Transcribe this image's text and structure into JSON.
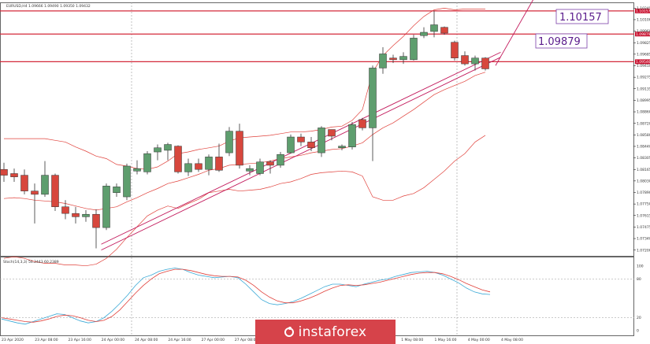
{
  "chart_data": {
    "type": "candlestick",
    "header": "EURUSD,H4  1.09666 1.09490 1.09350 1.09432",
    "price_ylim": [
      1.0721,
      1.1026
    ],
    "price_ticks": [
      "1.10245",
      "1.10100",
      "1.09960",
      "1.09825",
      "1.09685",
      "1.09410",
      "1.09275",
      "1.09135",
      "1.08995",
      "1.08860",
      "1.08720",
      "1.08580",
      "1.08440",
      "1.08305",
      "1.08165",
      "1.08030",
      "1.07890",
      "1.07750",
      "1.07615",
      "1.07475",
      "1.07340",
      "1.07200"
    ],
    "horizontal_levels": [
      {
        "price": 1.10157,
        "label": "1.10157"
      },
      {
        "price": 1.09879,
        "label": "1.09879"
      },
      {
        "price": 1.09546,
        "label": "1.09546"
      }
    ],
    "callouts": [
      "1.10157",
      "1.09879"
    ],
    "time_labels": [
      "23 Apr 2020",
      "23 Apr 08:00",
      "23 Apr 16:00",
      "24 Apr 00:00",
      "24 Apr 08:00",
      "24 Apr 16:00",
      "27 Apr 00:00",
      "27 Apr 08:00",
      "27 Apr 16:00",
      "28 Apr 00:00",
      "28 Apr 08:00",
      "28 Apr 16:00",
      "1 May 08:00",
      "1 May 16:00",
      "4 May 00:00",
      "4 May 08:00"
    ],
    "candles": [
      {
        "o": 1.0825,
        "h": 1.0833,
        "l": 1.081,
        "c": 1.0818
      },
      {
        "o": 1.082,
        "h": 1.0826,
        "l": 1.081,
        "c": 1.0816
      },
      {
        "o": 1.0818,
        "h": 1.0825,
        "l": 1.0795,
        "c": 1.0799
      },
      {
        "o": 1.0799,
        "h": 1.0808,
        "l": 1.076,
        "c": 1.0795
      },
      {
        "o": 1.0795,
        "h": 1.0835,
        "l": 1.0792,
        "c": 1.0818
      },
      {
        "o": 1.0818,
        "h": 1.082,
        "l": 1.0775,
        "c": 1.078
      },
      {
        "o": 1.078,
        "h": 1.0788,
        "l": 1.0765,
        "c": 1.0772
      },
      {
        "o": 1.0772,
        "h": 1.078,
        "l": 1.076,
        "c": 1.0768
      },
      {
        "o": 1.0768,
        "h": 1.0776,
        "l": 1.0762,
        "c": 1.0771
      },
      {
        "o": 1.0771,
        "h": 1.0777,
        "l": 1.073,
        "c": 1.0755
      },
      {
        "o": 1.0755,
        "h": 1.0808,
        "l": 1.0752,
        "c": 1.0805
      },
      {
        "o": 1.0797,
        "h": 1.0808,
        "l": 1.0792,
        "c": 1.0804
      },
      {
        "o": 1.0792,
        "h": 1.0832,
        "l": 1.0788,
        "c": 1.0829
      },
      {
        "o": 1.0823,
        "h": 1.0836,
        "l": 1.0819,
        "c": 1.0826
      },
      {
        "o": 1.0822,
        "h": 1.0847,
        "l": 1.0819,
        "c": 1.0844
      },
      {
        "o": 1.0846,
        "h": 1.0855,
        "l": 1.0836,
        "c": 1.0851
      },
      {
        "o": 1.0848,
        "h": 1.0857,
        "l": 1.0836,
        "c": 1.0855
      },
      {
        "o": 1.0853,
        "h": 1.0854,
        "l": 1.082,
        "c": 1.0822
      },
      {
        "o": 1.0822,
        "h": 1.0838,
        "l": 1.0817,
        "c": 1.0832
      },
      {
        "o": 1.0832,
        "h": 1.0838,
        "l": 1.0822,
        "c": 1.0825
      },
      {
        "o": 1.0825,
        "h": 1.0843,
        "l": 1.0818,
        "c": 1.084
      },
      {
        "o": 1.084,
        "h": 1.0856,
        "l": 1.0822,
        "c": 1.0824
      },
      {
        "o": 1.0845,
        "h": 1.0876,
        "l": 1.0841,
        "c": 1.0871
      },
      {
        "o": 1.0871,
        "h": 1.088,
        "l": 1.0826,
        "c": 1.083
      },
      {
        "o": 1.0823,
        "h": 1.083,
        "l": 1.0818,
        "c": 1.0826
      },
      {
        "o": 1.082,
        "h": 1.0838,
        "l": 1.0818,
        "c": 1.0834
      },
      {
        "o": 1.0834,
        "h": 1.0836,
        "l": 1.082,
        "c": 1.083
      },
      {
        "o": 1.083,
        "h": 1.0846,
        "l": 1.0827,
        "c": 1.0843
      },
      {
        "o": 1.0845,
        "h": 1.0867,
        "l": 1.0844,
        "c": 1.0864
      },
      {
        "o": 1.0864,
        "h": 1.0868,
        "l": 1.0853,
        "c": 1.0858
      },
      {
        "o": 1.0858,
        "h": 1.0864,
        "l": 1.0847,
        "c": 1.0851
      },
      {
        "o": 1.0845,
        "h": 1.0877,
        "l": 1.084,
        "c": 1.0875
      },
      {
        "o": 1.0873,
        "h": 1.0873,
        "l": 1.086,
        "c": 1.0865
      },
      {
        "o": 1.0851,
        "h": 1.0855,
        "l": 1.0848,
        "c": 1.0853
      },
      {
        "o": 1.0852,
        "h": 1.0882,
        "l": 1.0849,
        "c": 1.0879
      },
      {
        "o": 1.0885,
        "h": 1.0887,
        "l": 1.0872,
        "c": 1.0875
      },
      {
        "o": 1.0875,
        "h": 1.095,
        "l": 1.0835,
        "c": 1.0947
      },
      {
        "o": 1.0947,
        "h": 1.0972,
        "l": 1.094,
        "c": 1.0964
      },
      {
        "o": 1.0959,
        "h": 1.0963,
        "l": 1.0953,
        "c": 1.0957
      },
      {
        "o": 1.0957,
        "h": 1.0966,
        "l": 1.0952,
        "c": 1.0961
      },
      {
        "o": 1.0957,
        "h": 1.0987,
        "l": 1.0956,
        "c": 1.0983
      },
      {
        "o": 1.0986,
        "h": 1.0996,
        "l": 1.0983,
        "c": 1.099
      },
      {
        "o": 1.0991,
        "h": 1.1016,
        "l": 1.0984,
        "c": 1.0999
      },
      {
        "o": 1.0996,
        "h": 1.0997,
        "l": 1.0987,
        "c": 1.0989
      },
      {
        "o": 1.0978,
        "h": 1.098,
        "l": 1.0956,
        "c": 1.0959
      },
      {
        "o": 1.0962,
        "h": 1.0967,
        "l": 1.095,
        "c": 1.0952
      },
      {
        "o": 1.0952,
        "h": 1.0962,
        "l": 1.0944,
        "c": 1.0959
      },
      {
        "o": 1.0959,
        "h": 1.096,
        "l": 1.0944,
        "c": 1.0946
      }
    ],
    "bollinger": {
      "upper": [
        1.0862,
        1.0862,
        1.0862,
        1.0862,
        1.0862,
        1.086,
        1.0858,
        1.0852,
        1.0847,
        1.0841,
        1.0838,
        1.0831,
        1.0829,
        1.0826,
        1.0825,
        1.0828,
        1.0835,
        1.0844,
        1.0846,
        1.0849,
        1.0851,
        1.0853,
        1.0859,
        1.0863,
        1.0864,
        1.0865,
        1.0866,
        1.0868,
        1.087,
        1.087,
        1.0871,
        1.0873,
        1.0876,
        1.0877,
        1.0884,
        1.0897,
        1.0942,
        1.0962,
        1.0974,
        1.0985,
        1.0998,
        1.1009,
        1.1017,
        1.1019,
        1.1017,
        1.1018,
        1.1018,
        1.1018
      ],
      "middle": [
        1.079,
        1.0791,
        1.079,
        1.0788,
        1.0787,
        1.0786,
        1.0784,
        1.0781,
        1.0778,
        1.0776,
        1.0778,
        1.078,
        1.0786,
        1.0791,
        1.0797,
        1.0802,
        1.0808,
        1.0811,
        1.0815,
        1.0819,
        1.0824,
        1.0826,
        1.083,
        1.0831,
        1.0832,
        1.0833,
        1.0835,
        1.0838,
        1.084,
        1.0842,
        1.0845,
        1.0847,
        1.0849,
        1.085,
        1.0853,
        1.0857,
        1.0867,
        1.0875,
        1.0881,
        1.0889,
        1.0897,
        1.0906,
        1.0915,
        1.0921,
        1.0926,
        1.0931,
        1.0938,
        1.0942
      ],
      "lower": [
        1.0718,
        1.072,
        1.0718,
        1.0714,
        1.0712,
        1.0712,
        1.071,
        1.071,
        1.0709,
        1.0711,
        1.0718,
        1.0729,
        1.0743,
        1.0756,
        1.0769,
        1.0776,
        1.0781,
        1.0778,
        1.0784,
        1.0789,
        1.0797,
        1.0799,
        1.0801,
        1.0799,
        1.08,
        1.0801,
        1.0804,
        1.0808,
        1.081,
        1.0814,
        1.0819,
        1.0821,
        1.0822,
        1.0823,
        1.0822,
        1.0817,
        1.0792,
        1.0788,
        1.0788,
        1.0793,
        1.0796,
        1.0803,
        1.0813,
        1.0823,
        1.0835,
        1.0844,
        1.0858,
        1.0866
      ]
    },
    "trendlines": [
      {
        "from": [
          9.5,
          1.0728
        ],
        "to": [
          48.5,
          1.096
        ]
      },
      {
        "from": [
          9.5,
          1.0735
        ],
        "to": [
          48.5,
          1.0966
        ]
      },
      {
        "from": [
          48.0,
          1.095
        ],
        "to": [
          51.8,
          1.1032
        ]
      }
    ],
    "stochastic": {
      "header": "Stoch(14,3,3) 56.2443 60.2389",
      "ylim": [
        0,
        100
      ],
      "ticks": [
        "100",
        "80",
        "20",
        "0"
      ],
      "k": [
        18,
        15,
        12,
        10,
        14,
        18,
        22,
        26,
        25,
        20,
        15,
        12,
        14,
        20,
        30,
        42,
        55,
        70,
        82,
        86,
        92,
        95,
        97,
        95,
        90,
        86,
        84,
        82,
        83,
        84,
        82,
        72,
        60,
        48,
        42,
        40,
        42,
        45,
        50,
        56,
        62,
        68,
        72,
        72,
        70,
        68,
        72,
        75,
        78,
        80,
        84,
        87,
        90,
        91,
        92,
        90,
        86,
        80,
        74,
        66,
        60,
        57,
        56
      ],
      "d": [
        20,
        18,
        16,
        14,
        13,
        15,
        18,
        22,
        24,
        23,
        20,
        16,
        14,
        16,
        22,
        32,
        45,
        58,
        70,
        80,
        88,
        92,
        95,
        95,
        93,
        90,
        87,
        85,
        84,
        84,
        83,
        78,
        70,
        60,
        52,
        46,
        43,
        43,
        46,
        50,
        55,
        61,
        66,
        70,
        71,
        70,
        71,
        73,
        75,
        78,
        81,
        84,
        87,
        89,
        90,
        90,
        88,
        84,
        79,
        73,
        68,
        63,
        60
      ]
    }
  }
}
